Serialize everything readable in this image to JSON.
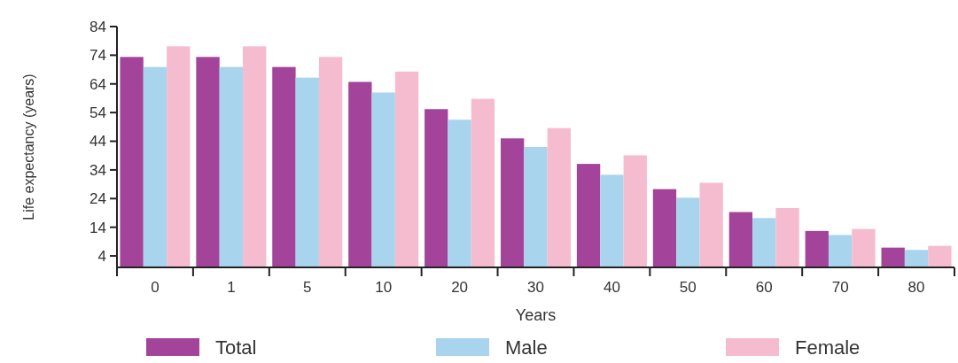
{
  "chart_data": {
    "type": "bar",
    "xlabel": "Years",
    "ylabel": "Life expectancy (years)",
    "categories": [
      "0",
      "1",
      "5",
      "10",
      "20",
      "30",
      "40",
      "50",
      "60",
      "70",
      "80"
    ],
    "series": [
      {
        "name": "Total",
        "color": "#a3449a",
        "values": [
          73.4,
          73.4,
          69.9,
          64.7,
          55.2,
          45.0,
          36.1,
          27.3,
          19.3,
          12.7,
          6.9
        ]
      },
      {
        "name": "Male",
        "color": "#a8d4ee",
        "values": [
          69.9,
          69.9,
          66.2,
          61.0,
          51.5,
          42.0,
          32.3,
          24.3,
          17.2,
          11.3,
          6.1
        ]
      },
      {
        "name": "Female",
        "color": "#f5bcd0",
        "values": [
          77.1,
          77.1,
          73.4,
          68.3,
          58.8,
          48.6,
          39.1,
          29.5,
          20.7,
          13.4,
          7.5
        ]
      }
    ],
    "ylim": [
      0,
      84
    ],
    "yticks": [
      4,
      14,
      24,
      34,
      44,
      54,
      64,
      74,
      84
    ],
    "legend": "bottom",
    "grid": false
  }
}
